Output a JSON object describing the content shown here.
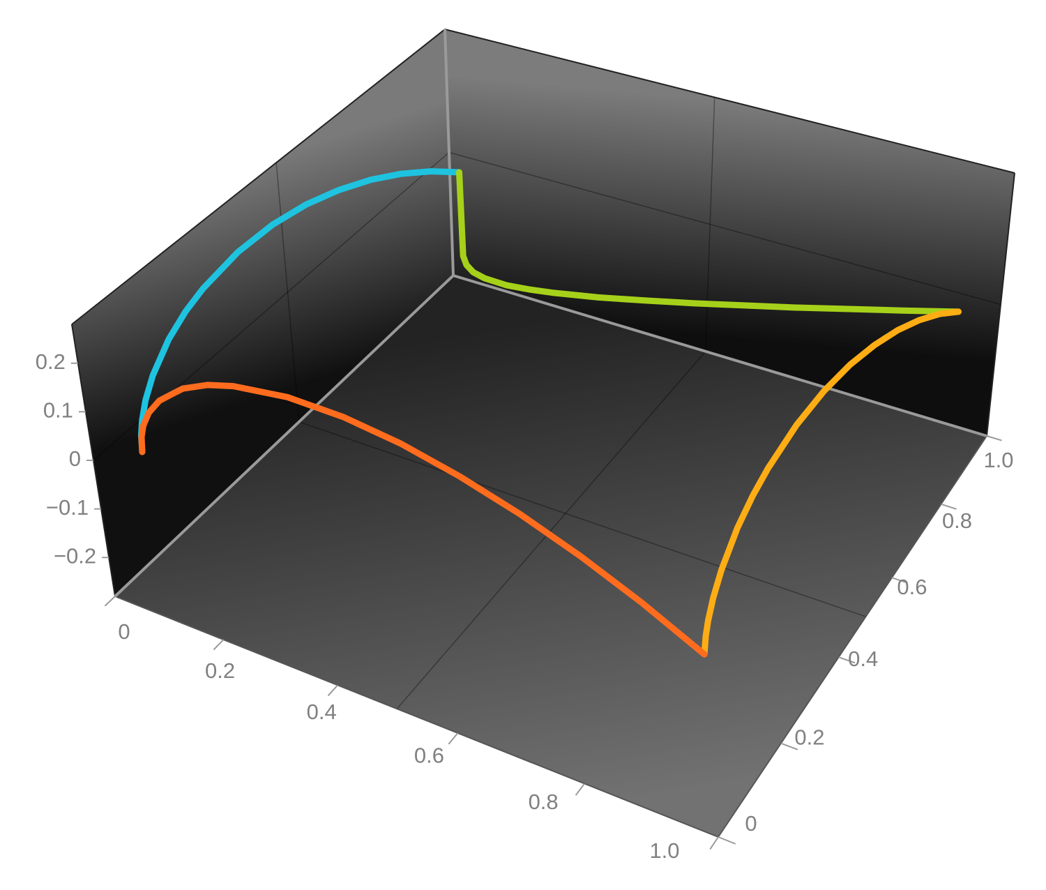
{
  "chart_data": {
    "type": "line3d",
    "xlim": [
      0,
      1
    ],
    "ylim": [
      0,
      1
    ],
    "zlim": [
      -0.28,
      0.28
    ],
    "xticks": [
      0,
      0.2,
      0.4,
      0.6,
      0.8,
      {
        "value": 1,
        "label": "1.0"
      }
    ],
    "yticks": [
      0,
      0.2,
      0.4,
      0.6,
      0.8,
      {
        "value": 1,
        "label": "1.0"
      }
    ],
    "zticks": [
      {
        "value": -0.2,
        "label": "−0.2"
      },
      {
        "value": -0.1,
        "label": "−0.1"
      },
      0,
      0.1,
      0.2
    ],
    "grid": {
      "x": [
        0.5
      ],
      "y": [
        0.5
      ],
      "z": [
        0
      ]
    },
    "series": [
      {
        "color": "#1ec3e0",
        "x": [
          0.05,
          0.05,
          0.05,
          0.05,
          0.05,
          0.05,
          0.05,
          0.05,
          0.05,
          0.05,
          0.05,
          0.05,
          0.05,
          0.05,
          0.05,
          0.05
        ],
        "y": [
          0.05,
          0.0527,
          0.059,
          0.0725,
          0.095,
          0.14,
          0.185,
          0.23,
          0.32,
          0.41,
          0.5,
          0.59,
          0.68,
          0.77,
          0.86,
          0.95
        ],
        "z": [
          0,
          0.032,
          0.058,
          0.09,
          0.124,
          0.167,
          0.193,
          0.209,
          0.224,
          0.222,
          0.207,
          0.181,
          0.147,
          0.105,
          0.056,
          0
        ]
      },
      {
        "color": "#a6d11a",
        "x": [
          0.05,
          0.0527,
          0.059,
          0.0725,
          0.095,
          0.14,
          0.185,
          0.23,
          0.32,
          0.41,
          0.5,
          0.59,
          0.68,
          0.77,
          0.86,
          0.95
        ],
        "y": [
          0.95,
          0.95,
          0.95,
          0.95,
          0.95,
          0.95,
          0.95,
          0.95,
          0.95,
          0.95,
          0.95,
          0.95,
          0.95,
          0.95,
          0.95,
          0.95
        ],
        "z": [
          0,
          -0.188,
          -0.206,
          -0.218,
          -0.224,
          -0.225,
          -0.219,
          -0.211,
          -0.191,
          -0.167,
          -0.142,
          -0.115,
          -0.088,
          -0.059,
          -0.03,
          0
        ]
      },
      {
        "color": "#ffad14",
        "x": [
          0.95,
          0.95,
          0.95,
          0.95,
          0.95,
          0.95,
          0.95,
          0.95,
          0.95,
          0.95,
          0.95,
          0.95,
          0.95,
          0.95,
          0.95,
          0.95
        ],
        "y": [
          0.05,
          0.0527,
          0.059,
          0.0725,
          0.095,
          0.14,
          0.185,
          0.23,
          0.32,
          0.41,
          0.5,
          0.59,
          0.68,
          0.77,
          0.86,
          0.95
        ],
        "z": [
          0,
          0.032,
          0.058,
          0.09,
          0.124,
          0.167,
          0.193,
          0.209,
          0.224,
          0.222,
          0.207,
          0.181,
          0.147,
          0.105,
          0.056,
          0
        ]
      },
      {
        "color": "#ff6c1e",
        "x": [
          0.05,
          0.0527,
          0.059,
          0.0725,
          0.095,
          0.14,
          0.185,
          0.23,
          0.32,
          0.41,
          0.5,
          0.59,
          0.68,
          0.77,
          0.86,
          0.95
        ],
        "y": [
          0.05,
          0.05,
          0.05,
          0.05,
          0.05,
          0.05,
          0.05,
          0.05,
          0.05,
          0.05,
          0.05,
          0.05,
          0.05,
          0.05,
          0.05,
          0.05
        ],
        "z": [
          0,
          0.032,
          0.058,
          0.09,
          0.124,
          0.167,
          0.193,
          0.209,
          0.224,
          0.222,
          0.207,
          0.181,
          0.147,
          0.105,
          0.056,
          0
        ]
      }
    ]
  }
}
